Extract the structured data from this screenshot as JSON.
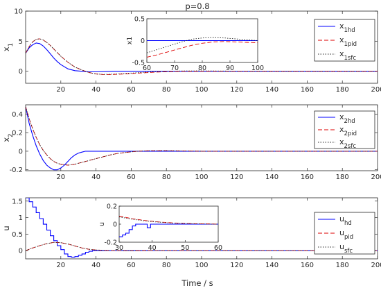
{
  "chart_data": {
    "type": "line",
    "title": "p=0.8",
    "xlabel": "Time / s",
    "colors": {
      "hd": "#0000ff",
      "pid": "#dd0000",
      "sfc": "#222222"
    },
    "panels": [
      {
        "ylabel": "x1",
        "xlim": [
          0,
          200
        ],
        "ylim": [
          -2,
          10
        ],
        "xticks": [
          20,
          40,
          60,
          80,
          100,
          120,
          140,
          160,
          180,
          200
        ],
        "yticks": [
          0,
          5,
          10
        ],
        "legend_position": "top-right",
        "legend": [
          {
            "base": "x",
            "sub": "1hd",
            "key": "hd",
            "style": "solid"
          },
          {
            "base": "x",
            "sub": "1pid",
            "key": "pid",
            "style": "dashed"
          },
          {
            "base": "x",
            "sub": "1sfc",
            "key": "sfc",
            "style": "dotted"
          }
        ],
        "series": [
          {
            "key": "hd",
            "x": [
              0,
              2,
              4,
              6,
              8,
              10,
              12,
              14,
              16,
              18,
              20,
              24,
              28,
              32,
              36,
              40,
              50,
              60,
              80,
              100,
              150,
              200
            ],
            "y": [
              3.0,
              3.9,
              4.4,
              4.7,
              4.6,
              4.2,
              3.6,
              2.9,
              2.2,
              1.6,
              1.1,
              0.4,
              0.1,
              0.0,
              -0.1,
              -0.1,
              0.0,
              0.0,
              0.0,
              0.0,
              0.0,
              0.0
            ]
          },
          {
            "key": "pid",
            "x": [
              0,
              2,
              4,
              6,
              8,
              10,
              12,
              14,
              16,
              18,
              20,
              24,
              28,
              32,
              36,
              40,
              44,
              48,
              52,
              56,
              60,
              66,
              72,
              80,
              90,
              100,
              120,
              150,
              200
            ],
            "y": [
              3.0,
              4.1,
              4.9,
              5.3,
              5.4,
              5.2,
              4.8,
              4.3,
              3.7,
              3.1,
              2.5,
              1.5,
              0.7,
              0.2,
              -0.2,
              -0.45,
              -0.55,
              -0.55,
              -0.5,
              -0.45,
              -0.38,
              -0.28,
              -0.18,
              -0.08,
              -0.02,
              0.0,
              0.0,
              0.0,
              0.0
            ]
          },
          {
            "key": "sfc",
            "x": [
              0,
              2,
              4,
              6,
              8,
              10,
              12,
              14,
              16,
              18,
              20,
              24,
              28,
              32,
              36,
              40,
              44,
              48,
              52,
              56,
              60,
              66,
              72,
              80,
              90,
              100,
              120,
              150,
              200
            ],
            "y": [
              3.0,
              4.1,
              4.9,
              5.3,
              5.4,
              5.2,
              4.8,
              4.3,
              3.7,
              3.1,
              2.5,
              1.5,
              0.7,
              0.2,
              -0.2,
              -0.45,
              -0.52,
              -0.5,
              -0.45,
              -0.38,
              -0.3,
              -0.2,
              -0.1,
              0.0,
              0.05,
              0.06,
              0.02,
              0.0,
              0.0
            ]
          }
        ],
        "inset": {
          "ylabel": "x1",
          "xlim": [
            60,
            100
          ],
          "ylim": [
            -0.5,
            0.5
          ],
          "xticks": [
            60,
            70,
            80,
            90,
            100
          ],
          "yticks": [
            -0.5,
            0,
            0.5
          ],
          "series": [
            {
              "key": "hd",
              "x": [
                60,
                70,
                80,
                90,
                100
              ],
              "y": [
                0.0,
                0.0,
                0.0,
                0.0,
                0.0
              ]
            },
            {
              "key": "pid",
              "x": [
                60,
                64,
                68,
                72,
                76,
                80,
                84,
                88,
                92,
                96,
                100
              ],
              "y": [
                -0.38,
                -0.32,
                -0.25,
                -0.18,
                -0.11,
                -0.06,
                -0.03,
                -0.02,
                -0.03,
                -0.04,
                -0.05
              ]
            },
            {
              "key": "sfc",
              "x": [
                60,
                64,
                68,
                72,
                76,
                80,
                84,
                88,
                92,
                96,
                100
              ],
              "y": [
                -0.28,
                -0.2,
                -0.12,
                -0.04,
                0.03,
                0.06,
                0.07,
                0.06,
                0.04,
                0.02,
                0.0
              ]
            }
          ]
        }
      },
      {
        "ylabel": "x2",
        "xlim": [
          0,
          200
        ],
        "ylim": [
          -0.21,
          0.5
        ],
        "xticks": [
          20,
          40,
          60,
          80,
          100,
          120,
          140,
          160,
          180,
          200
        ],
        "yticks": [
          -0.2,
          0,
          0.2,
          0.4
        ],
        "legend_position": "top-right",
        "legend": [
          {
            "base": "x",
            "sub": "2hd",
            "key": "hd",
            "style": "solid"
          },
          {
            "base": "x",
            "sub": "2pid",
            "key": "pid",
            "style": "dashed"
          },
          {
            "base": "x",
            "sub": "2sfc",
            "key": "sfc",
            "style": "dotted"
          }
        ],
        "series": [
          {
            "key": "hd",
            "x": [
              0,
              2,
              4,
              6,
              8,
              10,
              12,
              14,
              16,
              18,
              20,
              22,
              24,
              26,
              28,
              30,
              32,
              34,
              36,
              40,
              60,
              100,
              200
            ],
            "y": [
              0.48,
              0.3,
              0.17,
              0.06,
              -0.03,
              -0.1,
              -0.15,
              -0.18,
              -0.2,
              -0.2,
              -0.18,
              -0.15,
              -0.11,
              -0.07,
              -0.04,
              -0.02,
              -0.01,
              0.0,
              0.0,
              0.0,
              0.0,
              0.0,
              0.0
            ]
          },
          {
            "key": "pid",
            "x": [
              0,
              2,
              4,
              6,
              8,
              10,
              12,
              14,
              16,
              18,
              20,
              24,
              28,
              32,
              36,
              40,
              44,
              48,
              52,
              56,
              60,
              64,
              70,
              80,
              100,
              150,
              200
            ],
            "y": [
              0.48,
              0.35,
              0.24,
              0.15,
              0.07,
              0.01,
              -0.04,
              -0.08,
              -0.11,
              -0.13,
              -0.14,
              -0.15,
              -0.14,
              -0.12,
              -0.1,
              -0.08,
              -0.06,
              -0.04,
              -0.025,
              -0.015,
              -0.007,
              0.0,
              0.005,
              0.006,
              0.0,
              0.0,
              0.0
            ]
          },
          {
            "key": "sfc",
            "x": [
              0,
              2,
              4,
              6,
              8,
              10,
              12,
              14,
              16,
              18,
              20,
              24,
              28,
              32,
              36,
              40,
              44,
              48,
              52,
              56,
              60,
              64,
              70,
              80,
              100,
              150,
              200
            ],
            "y": [
              0.48,
              0.35,
              0.24,
              0.15,
              0.07,
              0.01,
              -0.04,
              -0.08,
              -0.11,
              -0.13,
              -0.14,
              -0.15,
              -0.14,
              -0.12,
              -0.1,
              -0.08,
              -0.06,
              -0.04,
              -0.025,
              -0.015,
              -0.007,
              0.0,
              0.005,
              0.006,
              0.0,
              0.0,
              0.0
            ]
          }
        ]
      },
      {
        "ylabel": "u",
        "xlim": [
          0,
          200
        ],
        "ylim": [
          -0.25,
          1.6
        ],
        "xticks": [
          20,
          40,
          60,
          80,
          100,
          120,
          140,
          160,
          180,
          200
        ],
        "yticks": [
          0,
          0.5,
          1,
          1.5
        ],
        "legend_position": "top-right",
        "legend": [
          {
            "base": "u",
            "sub": "hd",
            "key": "hd",
            "style": "solid"
          },
          {
            "base": "u",
            "sub": "pid",
            "key": "pid",
            "style": "dashed"
          },
          {
            "base": "u",
            "sub": "sfc",
            "key": "sfc",
            "style": "dotted"
          }
        ],
        "series": [
          {
            "key": "hd",
            "step": true,
            "x": [
              0,
              2,
              4,
              6,
              8,
              10,
              12,
              14,
              16,
              18,
              20,
              22,
              24,
              26,
              28,
              30,
              32,
              34,
              36,
              38,
              40,
              42,
              50,
              200
            ],
            "y": [
              1.6,
              1.48,
              1.32,
              1.15,
              0.97,
              0.8,
              0.62,
              0.45,
              0.3,
              0.15,
              0.03,
              -0.1,
              -0.18,
              -0.2,
              -0.18,
              -0.14,
              -0.1,
              -0.05,
              -0.02,
              0.0,
              0.0,
              0.0,
              0.0,
              0.0
            ]
          },
          {
            "key": "pid",
            "x": [
              0,
              4,
              8,
              12,
              16,
              20,
              24,
              28,
              32,
              36,
              40,
              44,
              48,
              52,
              56,
              60,
              70,
              80,
              100,
              200
            ],
            "y": [
              0.0,
              0.08,
              0.15,
              0.21,
              0.25,
              0.24,
              0.2,
              0.14,
              0.08,
              0.04,
              0.02,
              0.01,
              0.005,
              0.0,
              -0.005,
              -0.005,
              0.0,
              0.0,
              0.0,
              0.0
            ]
          },
          {
            "key": "sfc",
            "x": [
              0,
              4,
              8,
              12,
              16,
              20,
              24,
              28,
              32,
              36,
              40,
              44,
              48,
              52,
              56,
              60,
              70,
              80,
              100,
              200
            ],
            "y": [
              0.0,
              0.08,
              0.15,
              0.21,
              0.25,
              0.24,
              0.2,
              0.14,
              0.08,
              0.04,
              0.02,
              0.01,
              0.005,
              0.0,
              -0.005,
              -0.005,
              0.0,
              0.0,
              0.0,
              0.0
            ]
          }
        ],
        "inset": {
          "ylabel": "u",
          "xlim": [
            30,
            60
          ],
          "ylim": [
            -0.2,
            0.2
          ],
          "xticks": [
            30,
            40,
            50,
            60
          ],
          "yticks": [
            -0.2,
            0,
            0.2
          ],
          "series": [
            {
              "key": "hd",
              "step": true,
              "x": [
                30,
                31,
                32,
                33,
                34,
                35,
                38.5,
                39,
                39.5,
                40,
                60
              ],
              "y": [
                -0.14,
                -0.12,
                -0.1,
                -0.06,
                -0.02,
                0.0,
                -0.04,
                -0.04,
                0.0,
                0.0,
                0.0
              ]
            },
            {
              "key": "pid",
              "x": [
                30,
                34,
                38,
                42,
                46,
                50,
                54,
                58,
                60
              ],
              "y": [
                0.09,
                0.06,
                0.04,
                0.025,
                0.015,
                0.008,
                0.004,
                0.002,
                0.0
              ]
            },
            {
              "key": "sfc",
              "x": [
                30,
                34,
                38,
                42,
                46,
                50,
                54,
                58,
                60
              ],
              "y": [
                0.08,
                0.055,
                0.035,
                0.022,
                0.012,
                0.006,
                0.003,
                0.001,
                0.0
              ]
            }
          ]
        }
      }
    ]
  }
}
